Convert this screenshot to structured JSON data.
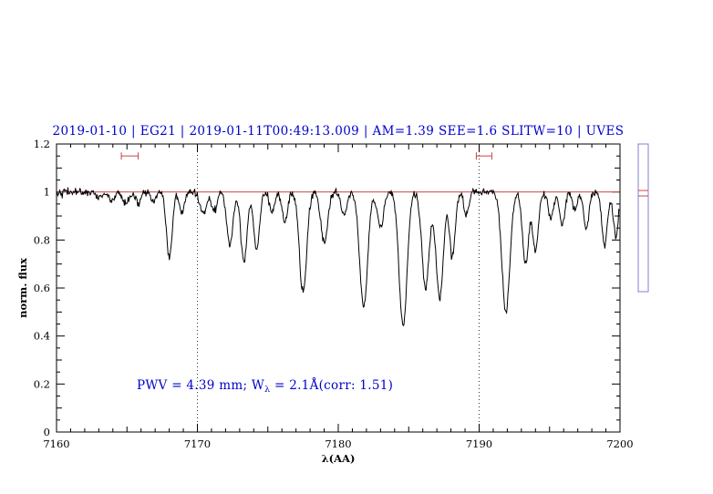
{
  "title": {
    "text": "2019-01-10 | EG21 | 2019-01-11T00:49:13.009 | AM=1.39 SEE=1.6 SLITW=10 | UVES"
  },
  "annotation": {
    "prefix": "PWV = 4.39 mm; W",
    "sub": "λ",
    "suffix": " = 2.1Å(corr: 1.51)"
  },
  "colors": {
    "accent_blue": "#0000cc",
    "spectrum_black": "#000000",
    "continuum_red": "#cc4444",
    "marker_red": "#cc4444",
    "panel_blue": "#8080d0"
  },
  "chart_data": {
    "type": "line",
    "title": "2019-01-10 | EG21 | 2019-01-11T00:49:13.009 | AM=1.39 SEE=1.6 SLITW=10 | UVES",
    "xlabel": "λ(AA)",
    "ylabel": "norm. flux",
    "xlim": [
      7160,
      7200
    ],
    "ylim": [
      0,
      1.2
    ],
    "xticks": [
      7160,
      7170,
      7180,
      7190,
      7200
    ],
    "xtick_labels": [
      "7160",
      "7170",
      "7180",
      "7190",
      "7200"
    ],
    "yticks": [
      0,
      0.2,
      0.4,
      0.6,
      0.8,
      1,
      1.2
    ],
    "ytick_labels": [
      "0",
      "0.2",
      "0.4",
      "0.6",
      "0.8",
      "1",
      "1.2"
    ],
    "minor_x_step": 1,
    "minor_y_step": 0.05,
    "dotted_vlines_x": [
      7170,
      7190
    ],
    "continuum_level": 1.0,
    "noise_sigma": 0.008,
    "noise_seed": 42,
    "sample_step": 0.045,
    "absorption_lines": [
      {
        "center": 7163.0,
        "depth": 0.03,
        "sigma": 0.18
      },
      {
        "center": 7163.9,
        "depth": 0.04,
        "sigma": 0.18
      },
      {
        "center": 7164.9,
        "depth": 0.05,
        "sigma": 0.22
      },
      {
        "center": 7165.8,
        "depth": 0.05,
        "sigma": 0.18
      },
      {
        "center": 7166.9,
        "depth": 0.04,
        "sigma": 0.18
      },
      {
        "center": 7168.0,
        "depth": 0.28,
        "sigma": 0.2
      },
      {
        "center": 7168.9,
        "depth": 0.09,
        "sigma": 0.18
      },
      {
        "center": 7170.4,
        "depth": 0.09,
        "sigma": 0.22
      },
      {
        "center": 7171.2,
        "depth": 0.08,
        "sigma": 0.18
      },
      {
        "center": 7172.3,
        "depth": 0.22,
        "sigma": 0.22
      },
      {
        "center": 7173.3,
        "depth": 0.29,
        "sigma": 0.22
      },
      {
        "center": 7174.2,
        "depth": 0.24,
        "sigma": 0.2
      },
      {
        "center": 7175.3,
        "depth": 0.08,
        "sigma": 0.18
      },
      {
        "center": 7176.2,
        "depth": 0.12,
        "sigma": 0.2
      },
      {
        "center": 7177.5,
        "depth": 0.42,
        "sigma": 0.26
      },
      {
        "center": 7179.0,
        "depth": 0.21,
        "sigma": 0.24
      },
      {
        "center": 7180.4,
        "depth": 0.09,
        "sigma": 0.22
      },
      {
        "center": 7181.8,
        "depth": 0.48,
        "sigma": 0.28
      },
      {
        "center": 7183.0,
        "depth": 0.15,
        "sigma": 0.22
      },
      {
        "center": 7184.6,
        "depth": 0.56,
        "sigma": 0.28
      },
      {
        "center": 7186.2,
        "depth": 0.4,
        "sigma": 0.26
      },
      {
        "center": 7187.2,
        "depth": 0.44,
        "sigma": 0.26
      },
      {
        "center": 7188.1,
        "depth": 0.27,
        "sigma": 0.2
      },
      {
        "center": 7189.1,
        "depth": 0.1,
        "sigma": 0.18
      },
      {
        "center": 7191.9,
        "depth": 0.5,
        "sigma": 0.28
      },
      {
        "center": 7193.3,
        "depth": 0.3,
        "sigma": 0.22
      },
      {
        "center": 7194.0,
        "depth": 0.25,
        "sigma": 0.2
      },
      {
        "center": 7195.1,
        "depth": 0.11,
        "sigma": 0.2
      },
      {
        "center": 7195.9,
        "depth": 0.14,
        "sigma": 0.18
      },
      {
        "center": 7196.8,
        "depth": 0.07,
        "sigma": 0.18
      },
      {
        "center": 7197.6,
        "depth": 0.15,
        "sigma": 0.18
      },
      {
        "center": 7198.9,
        "depth": 0.22,
        "sigma": 0.2
      },
      {
        "center": 7199.7,
        "depth": 0.18,
        "sigma": 0.18
      }
    ],
    "range_markers": [
      {
        "x_start": 7164.6,
        "x_end": 7165.8,
        "y": 1.15
      },
      {
        "x_start": 7189.8,
        "x_end": 7190.9,
        "y": 1.15
      }
    ]
  }
}
